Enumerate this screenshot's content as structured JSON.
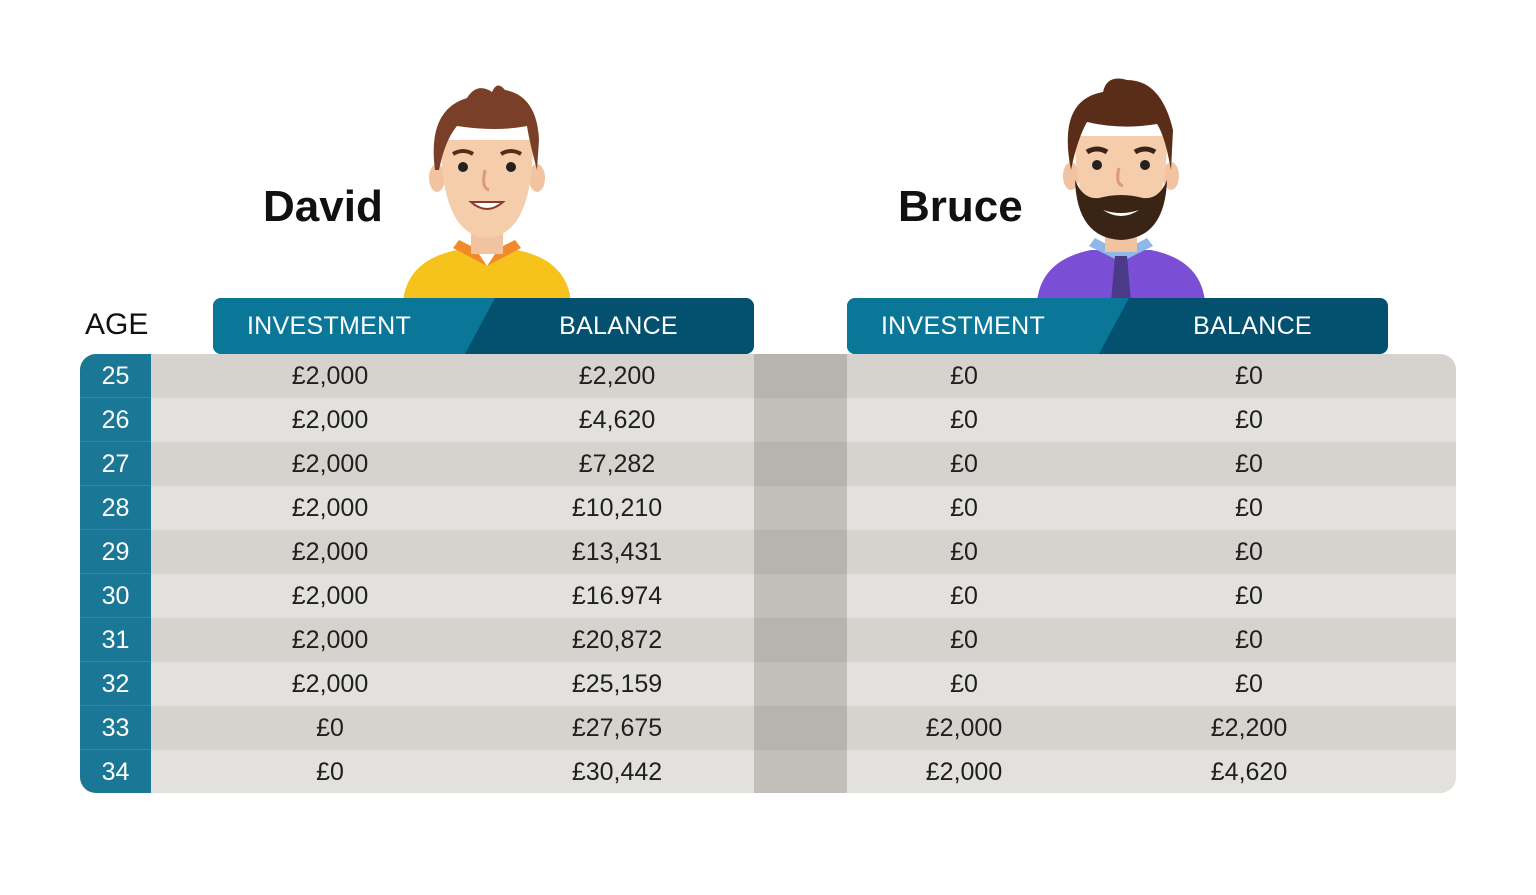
{
  "people": {
    "david": {
      "name": "David",
      "shirt_color": "#f5c31c",
      "collar_color": "#f08a2a",
      "hair_color": "#7a3f28"
    },
    "bruce": {
      "name": "Bruce",
      "shirt_color": "#7a4fd6",
      "collar_color": "#8fb8e8",
      "hair_color": "#5a2d18",
      "tie_color": "#4b3a8a"
    }
  },
  "colors": {
    "header_light": "#0a7799",
    "header_dark": "#03506f",
    "age_column": "#1a7896"
  },
  "chart_data": {
    "type": "table",
    "row_header": "AGE",
    "groups": [
      {
        "name": "David",
        "columns": [
          "INVESTMENT",
          "BALANCE"
        ]
      },
      {
        "name": "Bruce",
        "columns": [
          "INVESTMENT",
          "BALANCE"
        ]
      }
    ],
    "rows": [
      {
        "age": "25",
        "david_investment": "£2,000",
        "david_balance": "£2,200",
        "bruce_investment": "£0",
        "bruce_balance": "£0"
      },
      {
        "age": "26",
        "david_investment": "£2,000",
        "david_balance": "£4,620",
        "bruce_investment": "£0",
        "bruce_balance": "£0"
      },
      {
        "age": "27",
        "david_investment": "£2,000",
        "david_balance": "£7,282",
        "bruce_investment": "£0",
        "bruce_balance": "£0"
      },
      {
        "age": "28",
        "david_investment": "£2,000",
        "david_balance": "£10,210",
        "bruce_investment": "£0",
        "bruce_balance": "£0"
      },
      {
        "age": "29",
        "david_investment": "£2,000",
        "david_balance": "£13,431",
        "bruce_investment": "£0",
        "bruce_balance": "£0"
      },
      {
        "age": "30",
        "david_investment": "£2,000",
        "david_balance": "£16.974",
        "bruce_investment": "£0",
        "bruce_balance": "£0"
      },
      {
        "age": "31",
        "david_investment": "£2,000",
        "david_balance": "£20,872",
        "bruce_investment": "£0",
        "bruce_balance": "£0"
      },
      {
        "age": "32",
        "david_investment": "£2,000",
        "david_balance": "£25,159",
        "bruce_investment": "£0",
        "bruce_balance": "£0"
      },
      {
        "age": "33",
        "david_investment": "£0",
        "david_balance": "£27,675",
        "bruce_investment": "£2,000",
        "bruce_balance": "£2,200"
      },
      {
        "age": "34",
        "david_investment": "£0",
        "david_balance": "£30,442",
        "bruce_investment": "£2,000",
        "bruce_balance": "£4,620"
      }
    ]
  }
}
